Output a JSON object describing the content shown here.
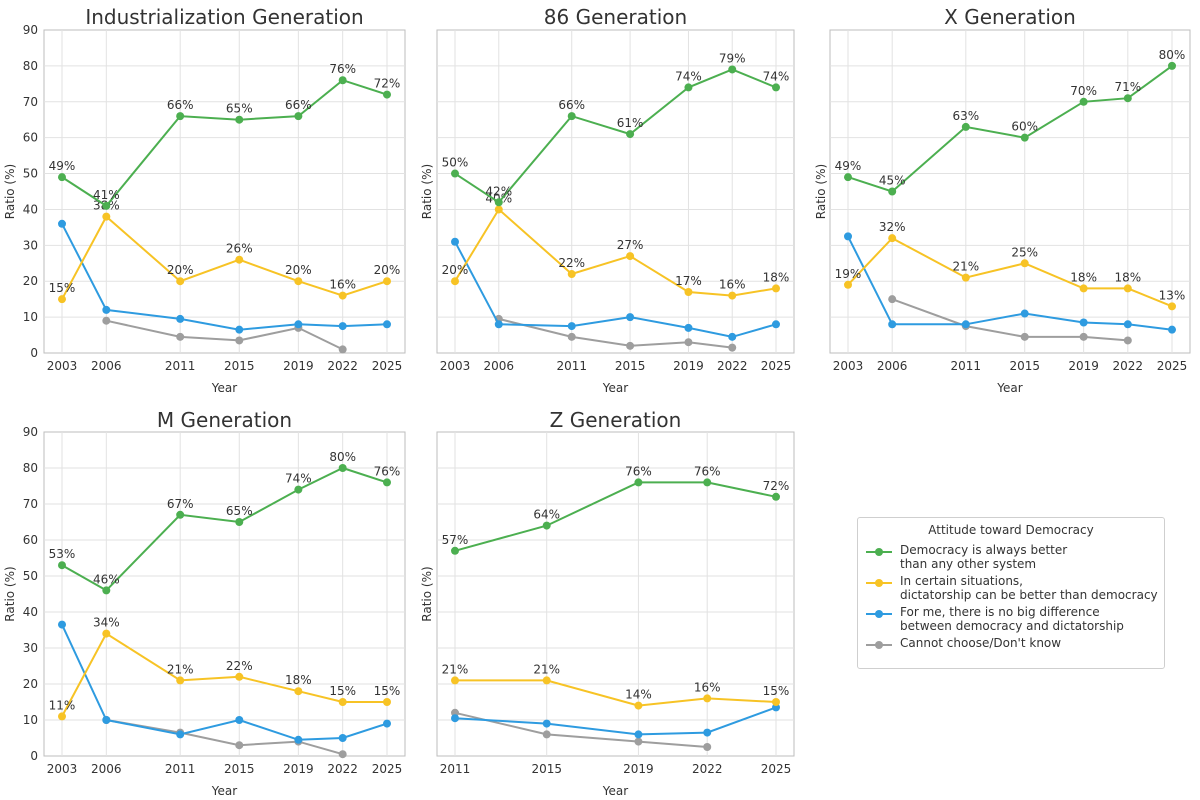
{
  "legend": {
    "title": "Attitude toward Democracy",
    "items": [
      {
        "label": "Democracy is always better\nthan any other system",
        "color": "#4caf50"
      },
      {
        "label": "In certain situations,\ndictatorship can be better than democracy",
        "color": "#f7c325"
      },
      {
        "label": "For me, there is no big difference\nbetween democracy and dictatorship",
        "color": "#2e9be0"
      },
      {
        "label": "Cannot choose/Don't know",
        "color": "#9e9e9e"
      }
    ]
  },
  "chart_data": [
    {
      "type": "line",
      "title": "Industrialization Generation",
      "xlabel": "Year",
      "ylabel": "Ratio (%)",
      "x": [
        2003,
        2006,
        2011,
        2015,
        2019,
        2022,
        2025
      ],
      "ylim": [
        0,
        90
      ],
      "yticks": [
        0,
        10,
        20,
        30,
        40,
        50,
        60,
        70,
        80,
        90
      ],
      "grid": true,
      "series": [
        {
          "name": "Democracy is always better than any other system",
          "color": "#4caf50",
          "values": [
            49,
            41,
            66,
            65,
            66,
            76,
            72
          ],
          "labels": [
            "49%",
            "41%",
            "66%",
            "65%",
            "66%",
            "76%",
            "72%"
          ]
        },
        {
          "name": "In certain situations, dictatorship can be better than democracy",
          "color": "#f7c325",
          "values": [
            15,
            38,
            20,
            26,
            20,
            16,
            20
          ],
          "labels": [
            "15%",
            "38%",
            "20%",
            "26%",
            "20%",
            "16%",
            "20%"
          ]
        },
        {
          "name": "For me, there is no big difference between democracy and dictatorship",
          "color": "#2e9be0",
          "values": [
            36,
            12,
            9.5,
            6.5,
            8,
            7.5,
            8
          ]
        },
        {
          "name": "Cannot choose/Don't know",
          "color": "#9e9e9e",
          "values": [
            null,
            9,
            4.5,
            3.5,
            7,
            1,
            null
          ]
        }
      ]
    },
    {
      "type": "line",
      "title": "86 Generation",
      "xlabel": "Year",
      "ylabel": "Ratio (%)",
      "x": [
        2003,
        2006,
        2011,
        2015,
        2019,
        2022,
        2025
      ],
      "ylim": [
        0,
        90
      ],
      "grid": true,
      "series": [
        {
          "name": "Democracy is always better than any other system",
          "color": "#4caf50",
          "values": [
            50,
            42,
            66,
            61,
            74,
            79,
            74
          ],
          "labels": [
            "50%",
            "42%",
            "66%",
            "61%",
            "74%",
            "79%",
            "74%"
          ]
        },
        {
          "name": "In certain situations, dictatorship can be better than democracy",
          "color": "#f7c325",
          "values": [
            20,
            40,
            22,
            27,
            17,
            16,
            18
          ],
          "labels": [
            "20%",
            "40%",
            "22%",
            "27%",
            "17%",
            "16%",
            "18%"
          ]
        },
        {
          "name": "For me, there is no big difference between democracy and dictatorship",
          "color": "#2e9be0",
          "values": [
            31,
            8,
            7.5,
            10,
            7,
            4.5,
            8
          ]
        },
        {
          "name": "Cannot choose/Don't know",
          "color": "#9e9e9e",
          "values": [
            null,
            9.5,
            4.5,
            2,
            3,
            1.5,
            null
          ]
        }
      ]
    },
    {
      "type": "line",
      "title": "X Generation",
      "xlabel": "Year",
      "ylabel": "Ratio (%)",
      "x": [
        2003,
        2006,
        2011,
        2015,
        2019,
        2022,
        2025
      ],
      "ylim": [
        0,
        90
      ],
      "grid": true,
      "series": [
        {
          "name": "Democracy is always better than any other system",
          "color": "#4caf50",
          "values": [
            49,
            45,
            63,
            60,
            70,
            71,
            80
          ],
          "labels": [
            "49%",
            "45%",
            "63%",
            "60%",
            "70%",
            "71%",
            "80%"
          ]
        },
        {
          "name": "In certain situations, dictatorship can be better than democracy",
          "color": "#f7c325",
          "values": [
            19,
            32,
            21,
            25,
            18,
            18,
            13
          ],
          "labels": [
            "19%",
            "32%",
            "21%",
            "25%",
            "18%",
            "18%",
            "13%"
          ]
        },
        {
          "name": "For me, there is no big difference between democracy and dictatorship",
          "color": "#2e9be0",
          "values": [
            32.5,
            8,
            8,
            11,
            8.5,
            8,
            6.5
          ]
        },
        {
          "name": "Cannot choose/Don't know",
          "color": "#9e9e9e",
          "values": [
            null,
            15,
            7.5,
            4.5,
            4.5,
            3.5,
            null
          ]
        }
      ]
    },
    {
      "type": "line",
      "title": "M Generation",
      "xlabel": "Year",
      "ylabel": "Ratio (%)",
      "x": [
        2003,
        2006,
        2011,
        2015,
        2019,
        2022,
        2025
      ],
      "ylim": [
        0,
        90
      ],
      "yticks": [
        0,
        10,
        20,
        30,
        40,
        50,
        60,
        70,
        80,
        90
      ],
      "grid": true,
      "series": [
        {
          "name": "Democracy is always better than any other system",
          "color": "#4caf50",
          "values": [
            53,
            46,
            67,
            65,
            74,
            80,
            76
          ],
          "labels": [
            "53%",
            "46%",
            "67%",
            "65%",
            "74%",
            "80%",
            "76%"
          ]
        },
        {
          "name": "In certain situations, dictatorship can be better than democracy",
          "color": "#f7c325",
          "values": [
            11,
            34,
            21,
            22,
            18,
            15,
            15
          ],
          "labels": [
            "11%",
            "34%",
            "21%",
            "22%",
            "18%",
            "15%",
            "15%"
          ]
        },
        {
          "name": "For me, there is no big difference between democracy and dictatorship",
          "color": "#2e9be0",
          "values": [
            36.5,
            10,
            6,
            10,
            4.5,
            5,
            9
          ]
        },
        {
          "name": "Cannot choose/Don't know",
          "color": "#9e9e9e",
          "values": [
            null,
            10,
            6.5,
            3,
            4,
            0.5,
            null
          ]
        }
      ]
    },
    {
      "type": "line",
      "title": "Z Generation",
      "xlabel": "Year",
      "ylabel": "Ratio (%)",
      "x": [
        2011,
        2015,
        2019,
        2022,
        2025
      ],
      "ylim": [
        0,
        90
      ],
      "grid": true,
      "series": [
        {
          "name": "Democracy is always better than any other system",
          "color": "#4caf50",
          "values": [
            57,
            64,
            76,
            76,
            72
          ],
          "labels": [
            "57%",
            "64%",
            "76%",
            "76%",
            "72%"
          ]
        },
        {
          "name": "In certain situations, dictatorship can be better than democracy",
          "color": "#f7c325",
          "values": [
            21,
            21,
            14,
            16,
            15
          ],
          "labels": [
            "21%",
            "21%",
            "14%",
            "16%",
            "15%"
          ]
        },
        {
          "name": "For me, there is no big difference between democracy and dictatorship",
          "color": "#2e9be0",
          "values": [
            10.5,
            9,
            6,
            6.5,
            13.5
          ]
        },
        {
          "name": "Cannot choose/Don't know",
          "color": "#9e9e9e",
          "values": [
            12,
            6,
            4,
            2.5,
            null
          ]
        }
      ]
    }
  ]
}
